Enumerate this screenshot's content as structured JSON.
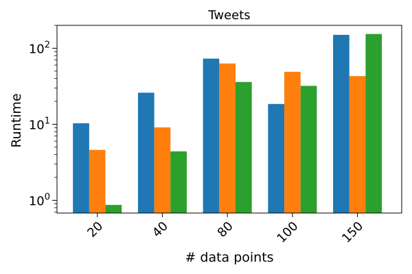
{
  "chart_data": {
    "type": "bar",
    "title": "Tweets",
    "xlabel": "# data points",
    "ylabel": "Runtime",
    "categories": [
      "20",
      "40",
      "80",
      "100",
      "150"
    ],
    "yscale": "log",
    "ylim": [
      0.68,
      200
    ],
    "yticks": [
      {
        "value": 1,
        "base": "10",
        "exp": "0"
      },
      {
        "value": 10,
        "base": "10",
        "exp": "1"
      },
      {
        "value": 100,
        "base": "10",
        "exp": "2"
      }
    ],
    "x_tick_rotation": "45 degrees",
    "grid": false,
    "legend": "none",
    "series": [
      {
        "color": "#1f77b4",
        "values": [
          10.3,
          26,
          73,
          18.5,
          150
        ]
      },
      {
        "color": "#ff7f0e",
        "values": [
          4.6,
          9.1,
          63,
          49,
          43
        ]
      },
      {
        "color": "#2ca02c",
        "values": [
          0.87,
          4.4,
          36,
          32,
          154
        ]
      }
    ]
  }
}
